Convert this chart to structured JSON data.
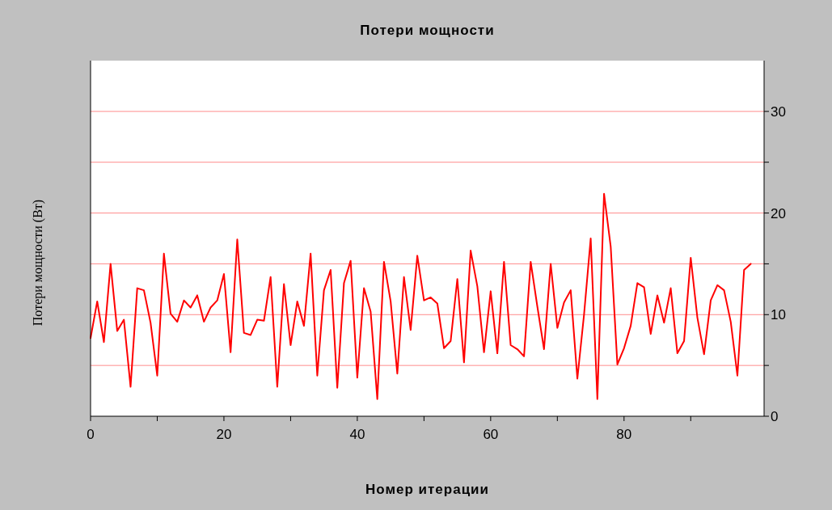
{
  "chart_data": {
    "type": "line",
    "title": "Потери мощности",
    "xlabel": "Номер итерации",
    "ylabel": "Потери мощности (Вт)",
    "x": [
      0,
      1,
      2,
      3,
      4,
      5,
      6,
      7,
      8,
      9,
      10,
      11,
      12,
      13,
      14,
      15,
      16,
      17,
      18,
      19,
      20,
      21,
      22,
      23,
      24,
      25,
      26,
      27,
      28,
      29,
      30,
      31,
      32,
      33,
      34,
      35,
      36,
      37,
      38,
      39,
      40,
      41,
      42,
      43,
      44,
      45,
      46,
      47,
      48,
      49,
      50,
      51,
      52,
      53,
      54,
      55,
      56,
      57,
      58,
      59,
      60,
      61,
      62,
      63,
      64,
      65,
      66,
      67,
      68,
      69,
      70,
      71,
      72,
      73,
      74,
      75,
      76,
      77,
      78,
      79,
      80,
      81,
      82,
      83,
      84,
      85,
      86,
      87,
      88,
      89,
      90,
      91,
      92,
      93,
      94,
      95,
      96,
      97,
      98,
      99
    ],
    "series": [
      {
        "color": "#ff0000",
        "values": [
          7.7,
          11.3,
          7.3,
          15.0,
          8.4,
          9.5,
          2.9,
          12.6,
          12.4,
          9.2,
          4.0,
          16.0,
          10.1,
          9.3,
          11.4,
          10.7,
          11.9,
          9.3,
          10.7,
          11.4,
          14.0,
          6.3,
          17.4,
          8.2,
          8.0,
          9.5,
          9.4,
          13.7,
          2.9,
          13.0,
          7.0,
          11.3,
          8.9,
          16.0,
          4.0,
          12.4,
          14.4,
          2.8,
          13.1,
          15.3,
          3.8,
          12.6,
          10.3,
          1.7,
          15.2,
          11.3,
          4.2,
          13.7,
          8.5,
          15.8,
          11.4,
          11.7,
          11.1,
          6.7,
          7.4,
          13.5,
          5.3,
          16.3,
          12.8,
          6.3,
          12.3,
          6.2,
          15.2,
          7.0,
          6.6,
          5.9,
          15.2,
          10.8,
          6.6,
          15.0,
          8.7,
          11.2,
          12.4,
          3.7,
          10.0,
          17.5,
          1.7,
          21.9,
          16.7,
          5.1,
          6.7,
          8.9,
          13.1,
          12.7,
          8.1,
          11.9,
          9.2,
          12.6,
          6.2,
          7.4,
          15.6,
          9.7,
          6.1,
          11.4,
          12.9,
          12.4,
          9.3,
          4.0,
          14.4,
          15.0
        ]
      }
    ],
    "xlim": [
      0,
      101
    ],
    "xticks": [
      0,
      {
        "value": 10,
        "label": null
      },
      20,
      {
        "value": 30,
        "label": null
      },
      40,
      {
        "value": 50,
        "label": null
      },
      60,
      {
        "value": 70,
        "label": null
      },
      80,
      {
        "value": 90,
        "label": null
      }
    ],
    "ylim": [
      0,
      35
    ],
    "yticks": [
      0,
      {
        "value": 5,
        "label": null
      },
      10,
      {
        "value": 15,
        "label": null
      },
      20,
      {
        "value": 25,
        "label": null
      },
      30
    ],
    "grid": "y",
    "marker": "none",
    "line_style": "solid"
  }
}
